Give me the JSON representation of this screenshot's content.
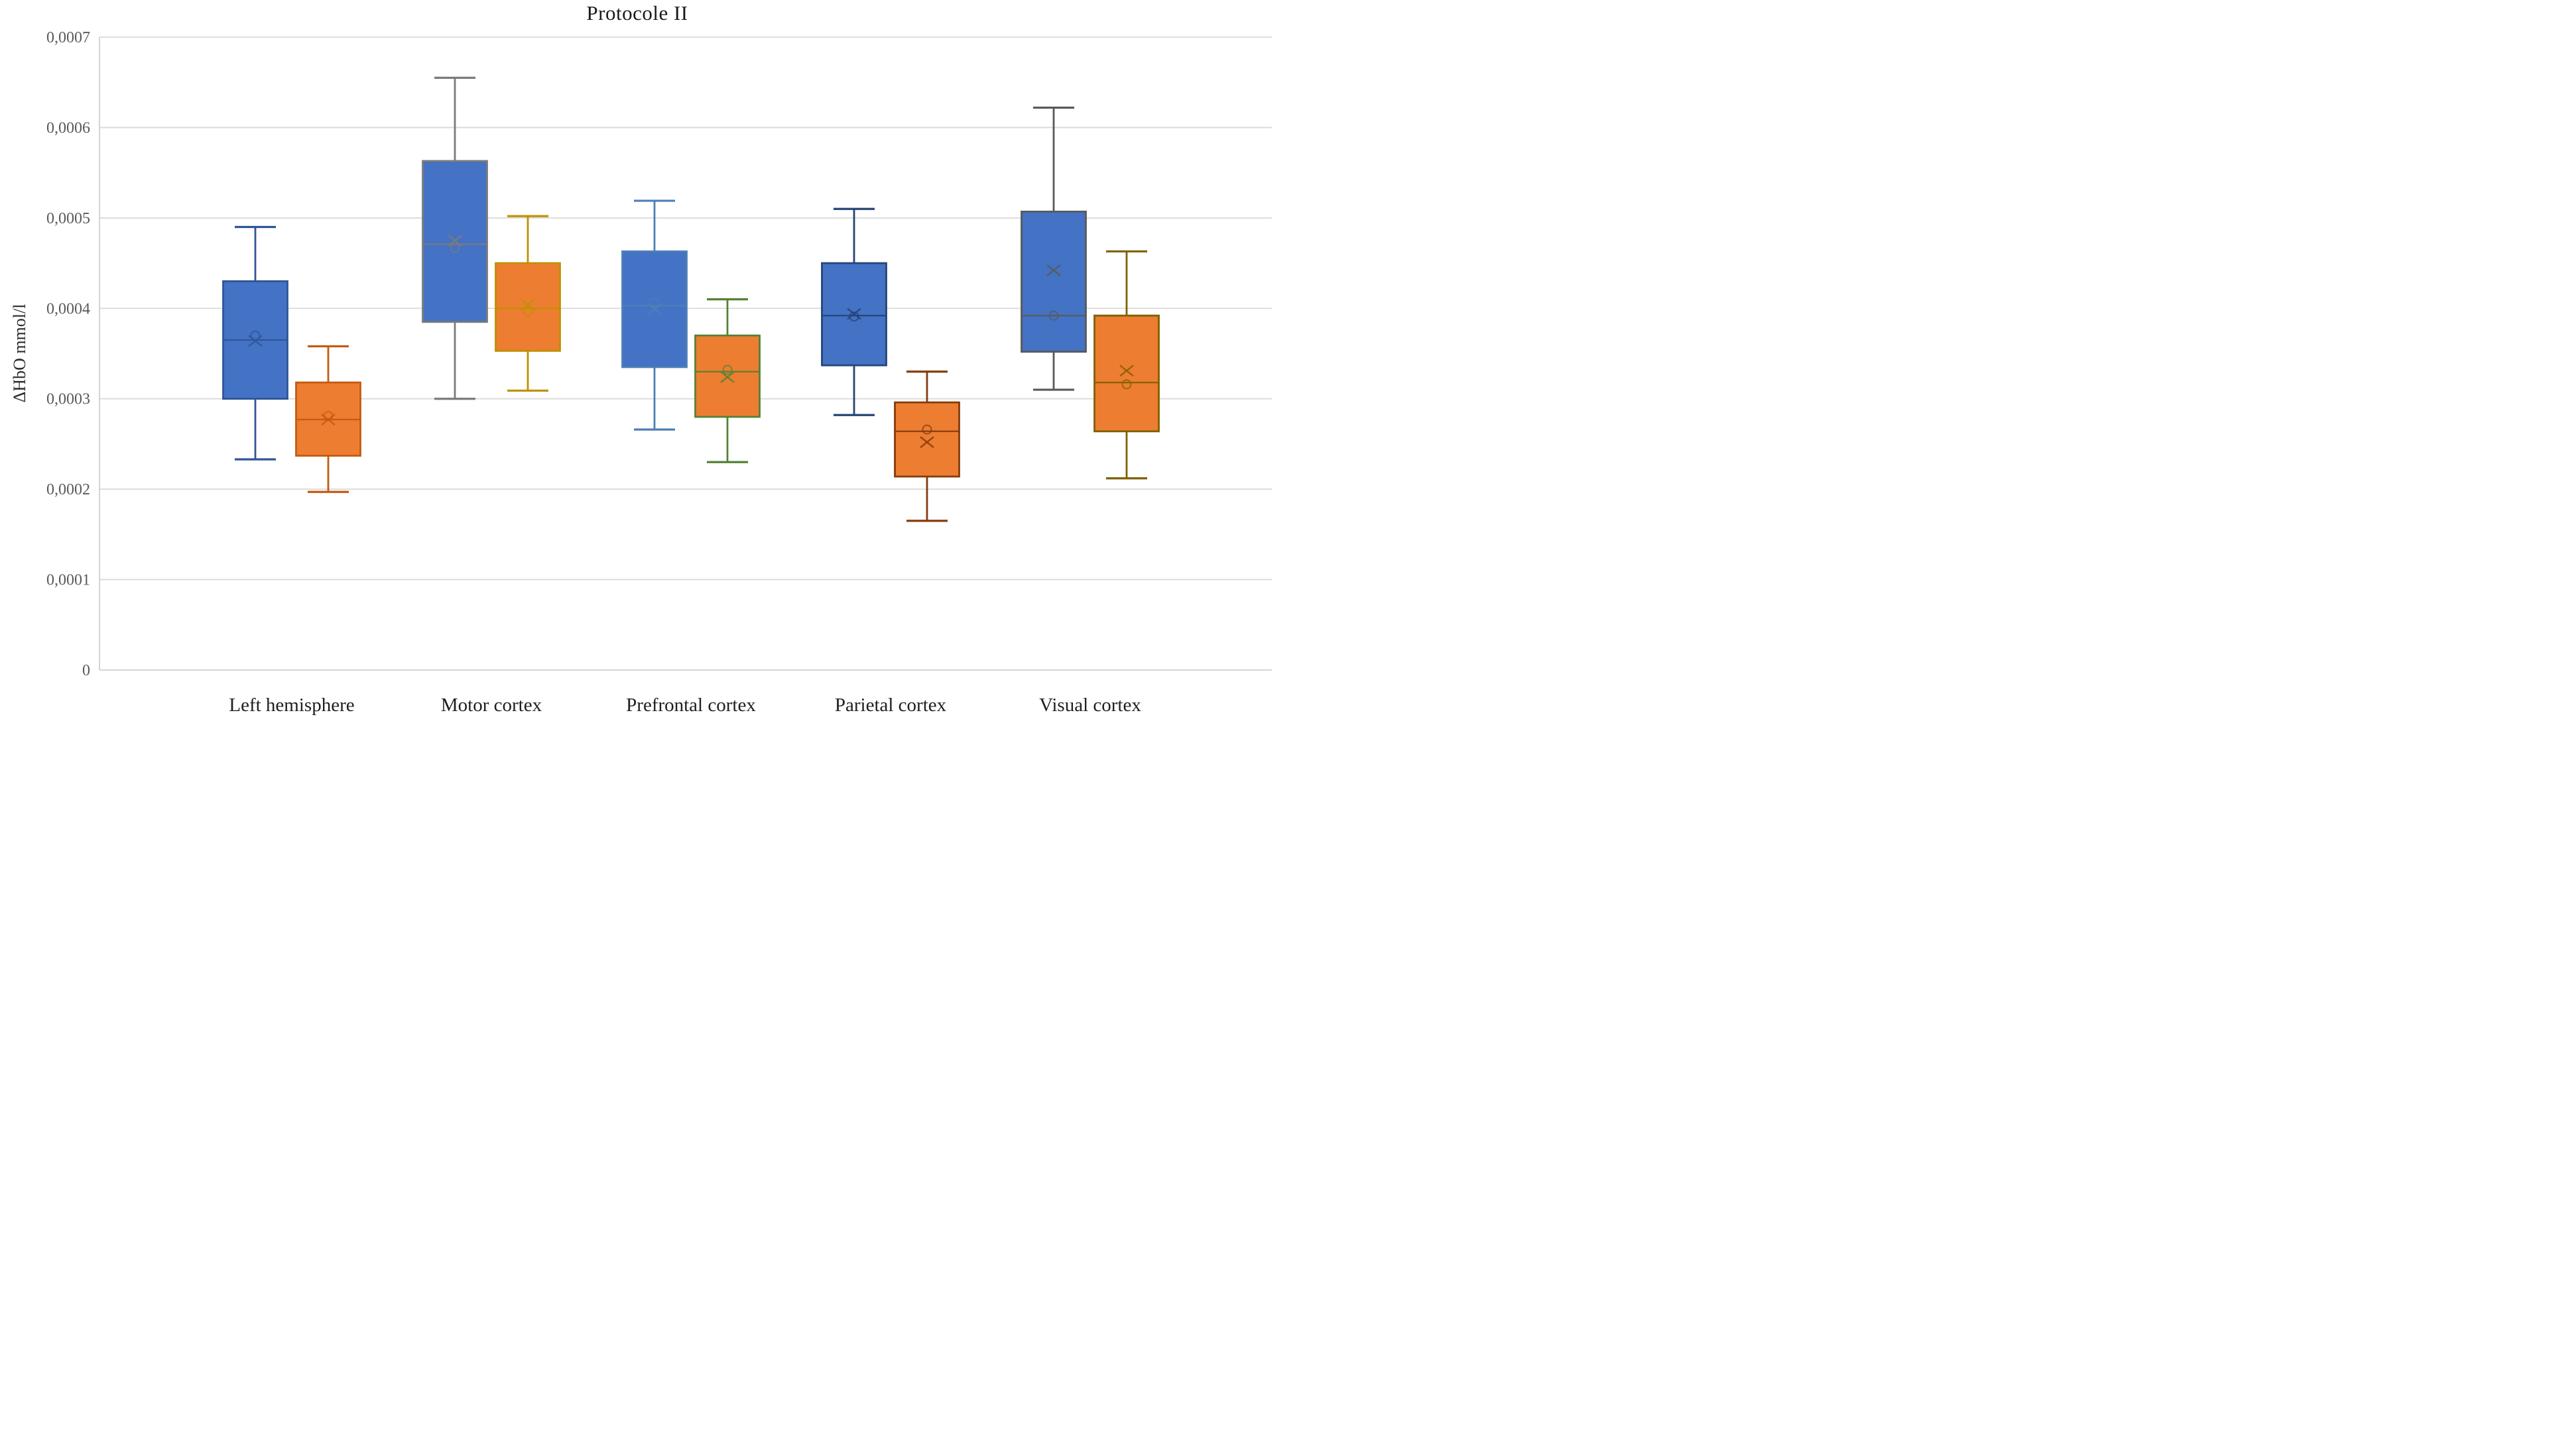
{
  "title": "Protocole II",
  "y_axis": {
    "label": "ΔHbO mmol/l",
    "tick_labels": [
      "0",
      "0,0001",
      "0,0002",
      "0,0003",
      "0,0004",
      "0,0005",
      "0,0006",
      "0,0007"
    ]
  },
  "chart_data": {
    "type": "boxplot",
    "title": "Protocole II",
    "xlabel": "",
    "ylabel": "ΔHbO mmol/l",
    "grid": true,
    "legend": "none",
    "ylim": [
      0,
      0.0007
    ],
    "ytick_step": 0.0001,
    "ytick_labels": [
      "0",
      "0,0001",
      "0,0002",
      "0,0003",
      "0,0004",
      "0,0005",
      "0,0006",
      "0,0007"
    ],
    "decimal_separator": ",",
    "categories": [
      "Left hemisphere",
      "Motor cortex",
      "Prefrontal cortex",
      "Parietal cortex",
      "Visual cortex"
    ],
    "series": [
      {
        "name": "series-blue",
        "fill": "#4472C4",
        "points": [
          {
            "category": "Left hemisphere",
            "border": "#2F5597",
            "min": 0.000233,
            "q1": 0.0003,
            "median": 0.000365,
            "q3": 0.00043,
            "max": 0.00049,
            "mean": 0.000364,
            "dot": 0.00037
          },
          {
            "category": "Motor cortex",
            "border": "#7B7B7B",
            "min": 0.0003,
            "q1": 0.000385,
            "median": 0.000471,
            "q3": 0.000563,
            "max": 0.000655,
            "mean": 0.000475,
            "dot": 0.000467
          },
          {
            "category": "Prefrontal cortex",
            "border": "#4E7FB5",
            "min": 0.000266,
            "q1": 0.000335,
            "median": 0.000403,
            "q3": 0.000463,
            "max": 0.000519,
            "mean": 0.000399,
            "dot": 0.000406
          },
          {
            "category": "Parietal cortex",
            "border": "#264478",
            "min": 0.000282,
            "q1": 0.000337,
            "median": 0.000392,
            "q3": 0.00045,
            "max": 0.00051,
            "mean": 0.000394,
            "dot": 0.000391
          },
          {
            "category": "Visual cortex",
            "border": "#595959",
            "min": 0.00031,
            "q1": 0.000352,
            "median": 0.000392,
            "q3": 0.000507,
            "max": 0.000622,
            "mean": 0.000442,
            "dot": 0.000392
          }
        ]
      },
      {
        "name": "series-orange",
        "fill": "#ED7D31",
        "points": [
          {
            "category": "Left hemisphere",
            "border": "#C55A11",
            "min": 0.000197,
            "q1": 0.000237,
            "median": 0.000277,
            "q3": 0.000318,
            "max": 0.000358,
            "mean": 0.000277,
            "dot": 0.000281
          },
          {
            "category": "Motor cortex",
            "border": "#BF9000",
            "min": 0.000309,
            "q1": 0.000353,
            "median": 0.0004,
            "q3": 0.00045,
            "max": 0.000502,
            "mean": 0.000404,
            "dot": 0.000397
          },
          {
            "category": "Prefrontal cortex",
            "border": "#548235",
            "min": 0.00023,
            "q1": 0.00028,
            "median": 0.00033,
            "q3": 0.00037,
            "max": 0.00041,
            "mean": 0.000324,
            "dot": 0.000332
          },
          {
            "category": "Parietal cortex",
            "border": "#843C0C",
            "min": 0.000165,
            "q1": 0.000214,
            "median": 0.000264,
            "q3": 0.000296,
            "max": 0.00033,
            "mean": 0.000252,
            "dot": 0.000266
          },
          {
            "category": "Visual cortex",
            "border": "#7F6000",
            "min": 0.000212,
            "q1": 0.000264,
            "median": 0.000318,
            "q3": 0.000392,
            "max": 0.000463,
            "mean": 0.000331,
            "dot": 0.000316
          }
        ]
      }
    ],
    "colors": {
      "gridline": "#D9D9D9",
      "axis_line": "#CFCFCF",
      "tick_text": "#595959",
      "category_text": "#1f1f1f",
      "title_text": "#1a1a1a"
    }
  }
}
